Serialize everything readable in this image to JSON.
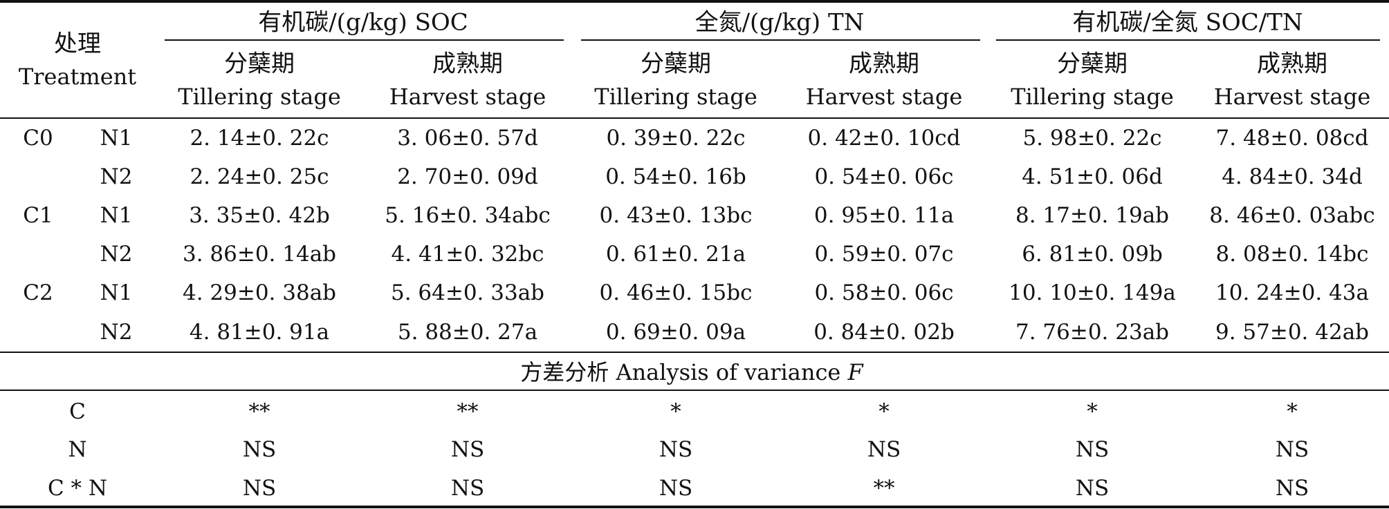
{
  "table": {
    "treatment_header": {
      "zh": "处理",
      "en": "Treatment"
    },
    "groups": [
      {
        "title": "有机碳/(g/kg) SOC"
      },
      {
        "title": "全氮/(g/kg) TN"
      },
      {
        "title": "有机碳/全氮 SOC/TN"
      }
    ],
    "subcols": [
      {
        "zh": "分蘖期",
        "en": "Tillering stage"
      },
      {
        "zh": "成熟期",
        "en": "Harvest stage"
      },
      {
        "zh": "分蘖期",
        "en": "Tillering stage"
      },
      {
        "zh": "成熟期",
        "en": "Harvest stage"
      },
      {
        "zh": "分蘖期",
        "en": "Tillering stage"
      },
      {
        "zh": "成熟期",
        "en": "Harvest stage"
      }
    ],
    "rows": [
      {
        "c": "C0",
        "n": "N1",
        "values": [
          "2. 14±0. 22c",
          "3. 06±0. 57d",
          "0. 39±0. 22c",
          "0. 42±0. 10cd",
          "5. 98±0. 22c",
          "7. 48±0. 08cd"
        ]
      },
      {
        "c": "",
        "n": "N2",
        "values": [
          "2. 24±0. 25c",
          "2. 70±0. 09d",
          "0. 54±0. 16b",
          "0. 54±0. 06c",
          "4. 51±0. 06d",
          "4. 84±0. 34d"
        ]
      },
      {
        "c": "C1",
        "n": "N1",
        "values": [
          "3. 35±0. 42b",
          "5. 16±0. 34abc",
          "0. 43±0. 13bc",
          "0. 95±0. 11a",
          "8. 17±0. 19ab",
          "8. 46±0. 03abc"
        ]
      },
      {
        "c": "",
        "n": "N2",
        "values": [
          "3. 86±0. 14ab",
          "4. 41±0. 32bc",
          "0. 61±0. 21a",
          "0. 59±0. 07c",
          "6. 81±0. 09b",
          "8. 08±0. 14bc"
        ]
      },
      {
        "c": "C2",
        "n": "N1",
        "values": [
          "4. 29±0. 38ab",
          "5. 64±0. 33ab",
          "0. 46±0. 15bc",
          "0. 58±0. 06c",
          "10. 10±0. 149a",
          "10. 24±0. 43a"
        ]
      },
      {
        "c": "",
        "n": "N2",
        "values": [
          "4. 81±0. 91a",
          "5. 88±0. 27a",
          "0. 69±0. 09a",
          "0. 84±0. 02b",
          "7. 76±0. 23ab",
          "9. 57±0. 42ab"
        ]
      }
    ],
    "anova_title_prefix": "方差分析 Analysis of variance ",
    "anova_title_symbol": "F",
    "anova": [
      {
        "label": "C",
        "values": [
          "**",
          "**",
          "*",
          "*",
          "*",
          "*"
        ]
      },
      {
        "label": "N",
        "values": [
          "NS",
          "NS",
          "NS",
          "NS",
          "NS",
          "NS"
        ]
      },
      {
        "label": "C * N",
        "values": [
          "NS",
          "NS",
          "NS",
          "**",
          "NS",
          "NS"
        ]
      }
    ]
  }
}
